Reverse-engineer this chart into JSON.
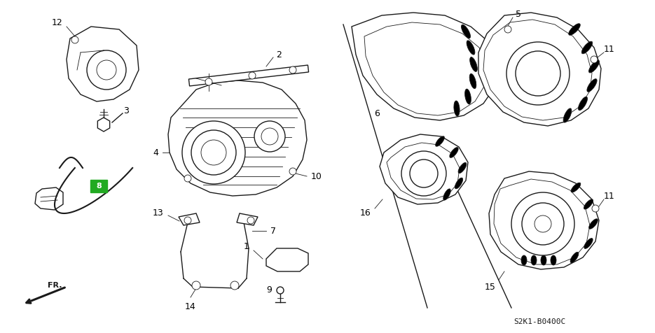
{
  "bg_color": "#ffffff",
  "line_color": "#1a1a1a",
  "green_fill": "#22aa22",
  "fig_width": 9.35,
  "fig_height": 4.76,
  "dpi": 100,
  "part_code": "S2K1-B0400C"
}
